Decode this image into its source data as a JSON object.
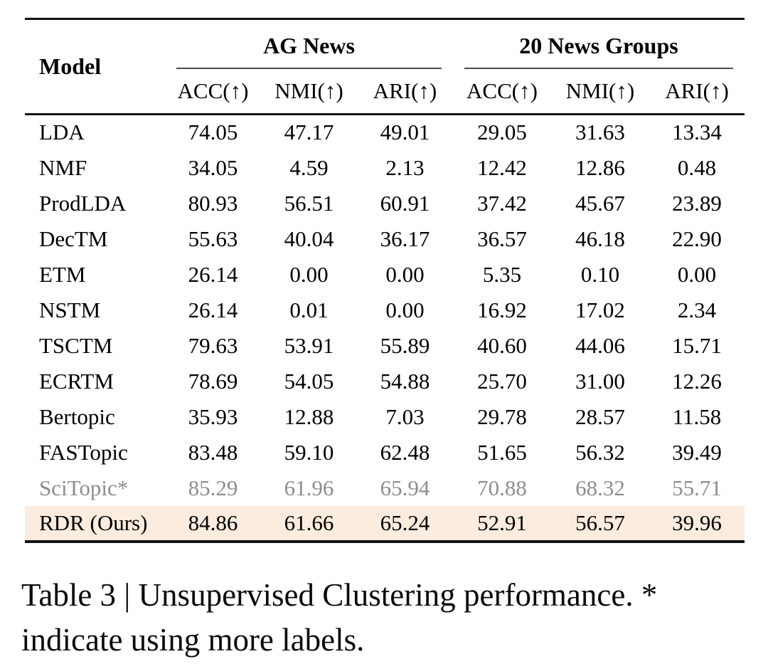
{
  "table": {
    "model_header": "Model",
    "groups": [
      {
        "label": "AG News"
      },
      {
        "label": "20 News Groups"
      }
    ],
    "subheaders": [
      "ACC(↑)",
      "NMI(↑)",
      "ARI(↑)",
      "ACC(↑)",
      "NMI(↑)",
      "ARI(↑)"
    ],
    "rows": [
      {
        "model": "LDA",
        "values": [
          "74.05",
          "47.17",
          "49.01",
          "29.05",
          "31.63",
          "13.34"
        ],
        "style": "normal"
      },
      {
        "model": "NMF",
        "values": [
          "34.05",
          "4.59",
          "2.13",
          "12.42",
          "12.86",
          "0.48"
        ],
        "style": "normal"
      },
      {
        "model": "ProdLDA",
        "values": [
          "80.93",
          "56.51",
          "60.91",
          "37.42",
          "45.67",
          "23.89"
        ],
        "style": "normal"
      },
      {
        "model": "DecTM",
        "values": [
          "55.63",
          "40.04",
          "36.17",
          "36.57",
          "46.18",
          "22.90"
        ],
        "style": "normal"
      },
      {
        "model": "ETM",
        "values": [
          "26.14",
          "0.00",
          "0.00",
          "5.35",
          "0.10",
          "0.00"
        ],
        "style": "normal"
      },
      {
        "model": "NSTM",
        "values": [
          "26.14",
          "0.01",
          "0.00",
          "16.92",
          "17.02",
          "2.34"
        ],
        "style": "normal"
      },
      {
        "model": "TSCTM",
        "values": [
          "79.63",
          "53.91",
          "55.89",
          "40.60",
          "44.06",
          "15.71"
        ],
        "style": "normal"
      },
      {
        "model": "ECRTM",
        "values": [
          "78.69",
          "54.05",
          "54.88",
          "25.70",
          "31.00",
          "12.26"
        ],
        "style": "normal"
      },
      {
        "model": "Bertopic",
        "values": [
          "35.93",
          "12.88",
          "7.03",
          "29.78",
          "28.57",
          "11.58"
        ],
        "style": "normal"
      },
      {
        "model": "FASTopic",
        "values": [
          "83.48",
          "59.10",
          "62.48",
          "51.65",
          "56.32",
          "39.49"
        ],
        "style": "normal"
      },
      {
        "model": "SciTopic*",
        "values": [
          "85.29",
          "61.96",
          "65.94",
          "70.88",
          "68.32",
          "55.71"
        ],
        "style": "muted"
      },
      {
        "model": "RDR (Ours)",
        "values": [
          "84.86",
          "61.66",
          "65.24",
          "52.91",
          "56.57",
          "39.96"
        ],
        "style": "highlight"
      }
    ],
    "colors": {
      "highlight_bg": "#fcecdf",
      "muted_text": "#8d8d8d",
      "rule_color": "#111111"
    }
  },
  "caption": {
    "line1": "Table 3 | Unsupervised Clustering performance. *",
    "line2": "indicate using more labels."
  }
}
